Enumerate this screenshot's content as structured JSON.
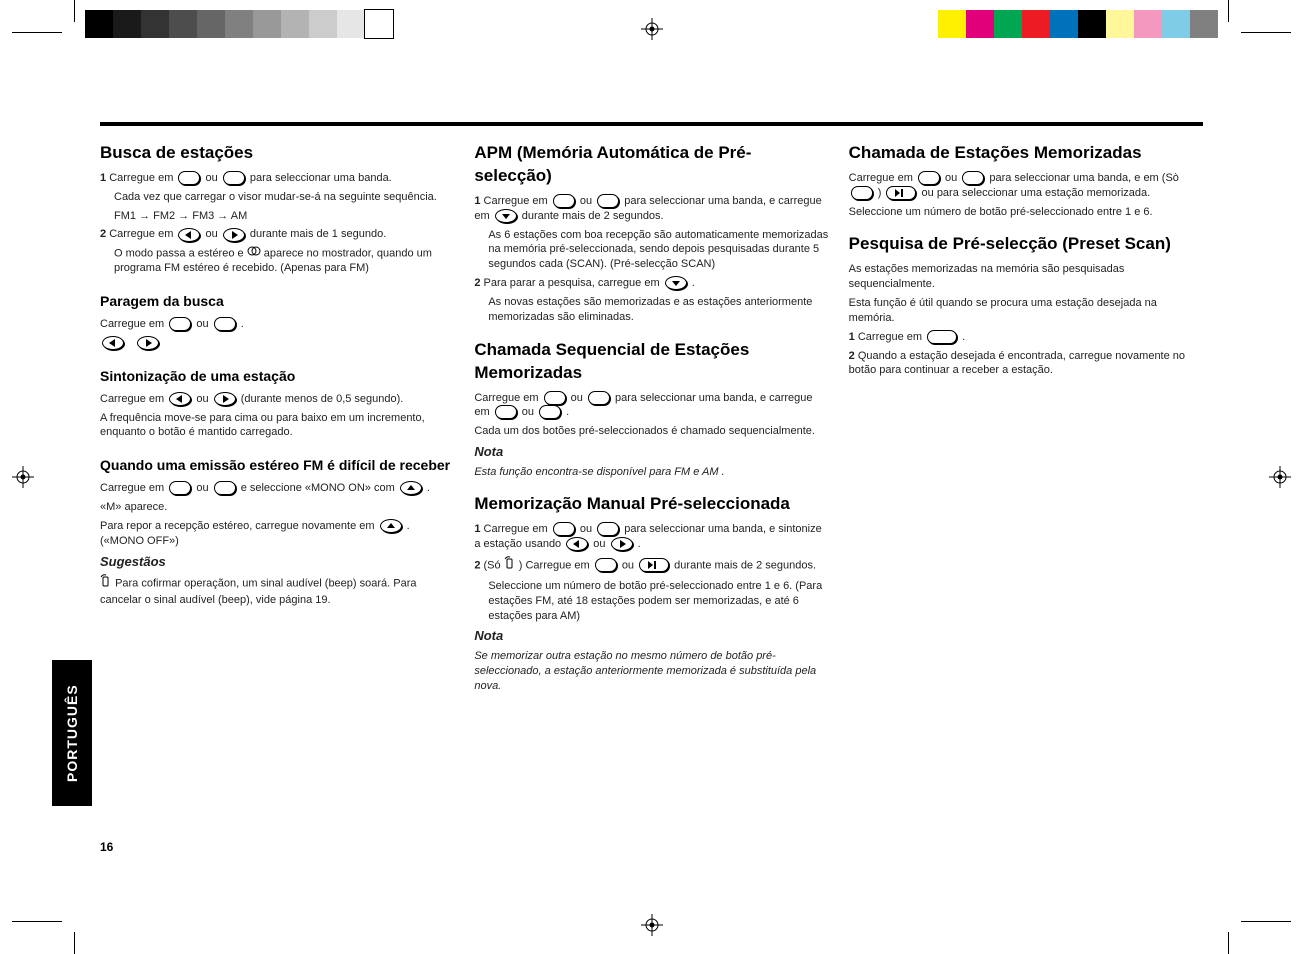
{
  "bars_left": [
    "#000000",
    "#1a1a1a",
    "#333333",
    "#4d4d4d",
    "#666666",
    "#808080",
    "#999999",
    "#b3b3b3",
    "#cccccc",
    "#e6e6e6",
    "#ffffff"
  ],
  "bars_right": [
    "#fff000",
    "#e2007a",
    "#00a651",
    "#ed1c24",
    "#0072bc",
    "#000000",
    "#fff799",
    "#f598c0",
    "#7ecce5",
    "#808080"
  ],
  "lang_tab": "PORTUGUÊS",
  "page_number": "16",
  "content": {
    "col1": {
      "h_search": "Busca de estações",
      "p1a": "Carregue em ",
      "p1b": " ou ",
      "p1c": " para seleccionar uma banda.",
      "p1d": "Cada vez que carregar o visor mudar-se-á na seguinte sequência.",
      "p1e": "FM1 → FM2 → FM3 → AM",
      "p2a": "Carregue em ",
      "p2b": " ou ",
      "p2c": " durante mais de 1 segundo.",
      "p2d": "O modo passa a estéreo e ",
      "p2e": " aparece no mostrador, quando um programa FM estéreo é recebido. (Apenas para FM)",
      "h_stop": "Paragem da busca",
      "s1a": "Carregue em ",
      "s1b": " ou ",
      "s1c": " .",
      "h_tune": "Sintonização de uma estação",
      "t1a": "Carregue em ",
      "t1b": " ou ",
      "t1c": " (durante menos de 0,5 segundo).",
      "t1d": "A frequência move-se para cima ou para baixo em um incremento, enquanto o botão é mantido carregado.",
      "h_mono": "Quando uma emissão estéreo FM é difícil de receber",
      "m1a": "Carregue em ",
      "m1b": " ou ",
      "m1c": " e seleccione «MONO ON» com ",
      "m1d": " .",
      "m1e": "«M» aparece.",
      "m2a": "Para repor a recepção estéreo, carregue novamente em ",
      "m2b": " . («MONO OFF»)",
      "sugest": "Sugestãos",
      "sg_body": "Para cofirmar operaçãon, um sinal audível (beep) soará. Para cancelar o sinal audível (beep), vide página 19."
    },
    "col2": {
      "h_apm": "APM (Memória Automática de Pré-selecção)",
      "a1a": "Carregue em ",
      "a1b": " ou ",
      "a1c": " para seleccionar uma banda, e carregue em ",
      "a1d": " durante mais de 2 segundos.",
      "a1e": "As 6 estações com boa recepção são automaticamente memorizadas na memória pré-seleccionada, sendo depois pesquisadas durante 5 segundos cada (SCAN). (Pré-selecção SCAN)",
      "a2a": "Para parar a pesquisa, carregue em ",
      "a2b": " .",
      "a2c": "As novas estações são memorizadas e as estações anteriormente memorizadas são eliminadas.",
      "h_seq": "Chamada Sequencial de Estações Memorizadas",
      "s1a": "Carregue em ",
      "s1b": " ou ",
      "s1c": " para seleccionar uma banda, e carregue em ",
      "s1d": " ou ",
      "s1e": " .",
      "s1f": "Cada um dos botões pré-seleccionados é chamado sequencialmente.",
      "nota1": "Nota",
      "nota1_body_a": "Esta função encontra-se disponível para FM ",
      "nota1_body_b": " e AM ",
      "nota1_body_c": " .",
      "h_man": "Memorização Manual Pré-seleccionada",
      "mm1a": "Carregue em ",
      "mm1b": " ou ",
      "mm1c": " para seleccionar uma banda, e sintonize a estação usando ",
      "mm1d": " ou ",
      "mm1e": " .",
      "mm2a": "(Só ",
      "mm2b": " ) Carregue em ",
      "mm2c": " ou ",
      "mm2d": " durante mais de 2 segundos.",
      "mm2e": "Seleccione um número de botão pré-seleccionado entre 1 e 6. (Para estações FM, até 18 estações podem ser memorizadas, e até 6 estações para AM)",
      "nota2": "Nota",
      "nota2_body": "Se memorizar outra estação no mesmo número de botão pré-seleccionado, a estação anteriormente memorizada é substituída pela nova."
    },
    "col3": {
      "h_call": "Chamada de Estações Memorizadas",
      "c1a": "Carregue em ",
      "c1b": " ou ",
      "c1c": " para seleccionar uma banda, e em (Sò ",
      "c1d": " ) ",
      "c1e": " ou ",
      "c1f": " para seleccionar uma estação memorizada.",
      "c1g": "Seleccione um número de botão pré-seleccionado entre 1 e 6.",
      "h_scan": "Pesquisa de Pré-selecção (Preset Scan)",
      "s1a": "As estações memorizadas na memória são pesquisadas sequencialmente.",
      "s1b": "Esta função é útil quando se procura uma estação desejada na memória.",
      "s2a": "Carregue em ",
      "s2b": " .",
      "s3a": "Quando a estação desejada é encontrada, carregue novamente no botão para continuar a receber a estação."
    }
  }
}
